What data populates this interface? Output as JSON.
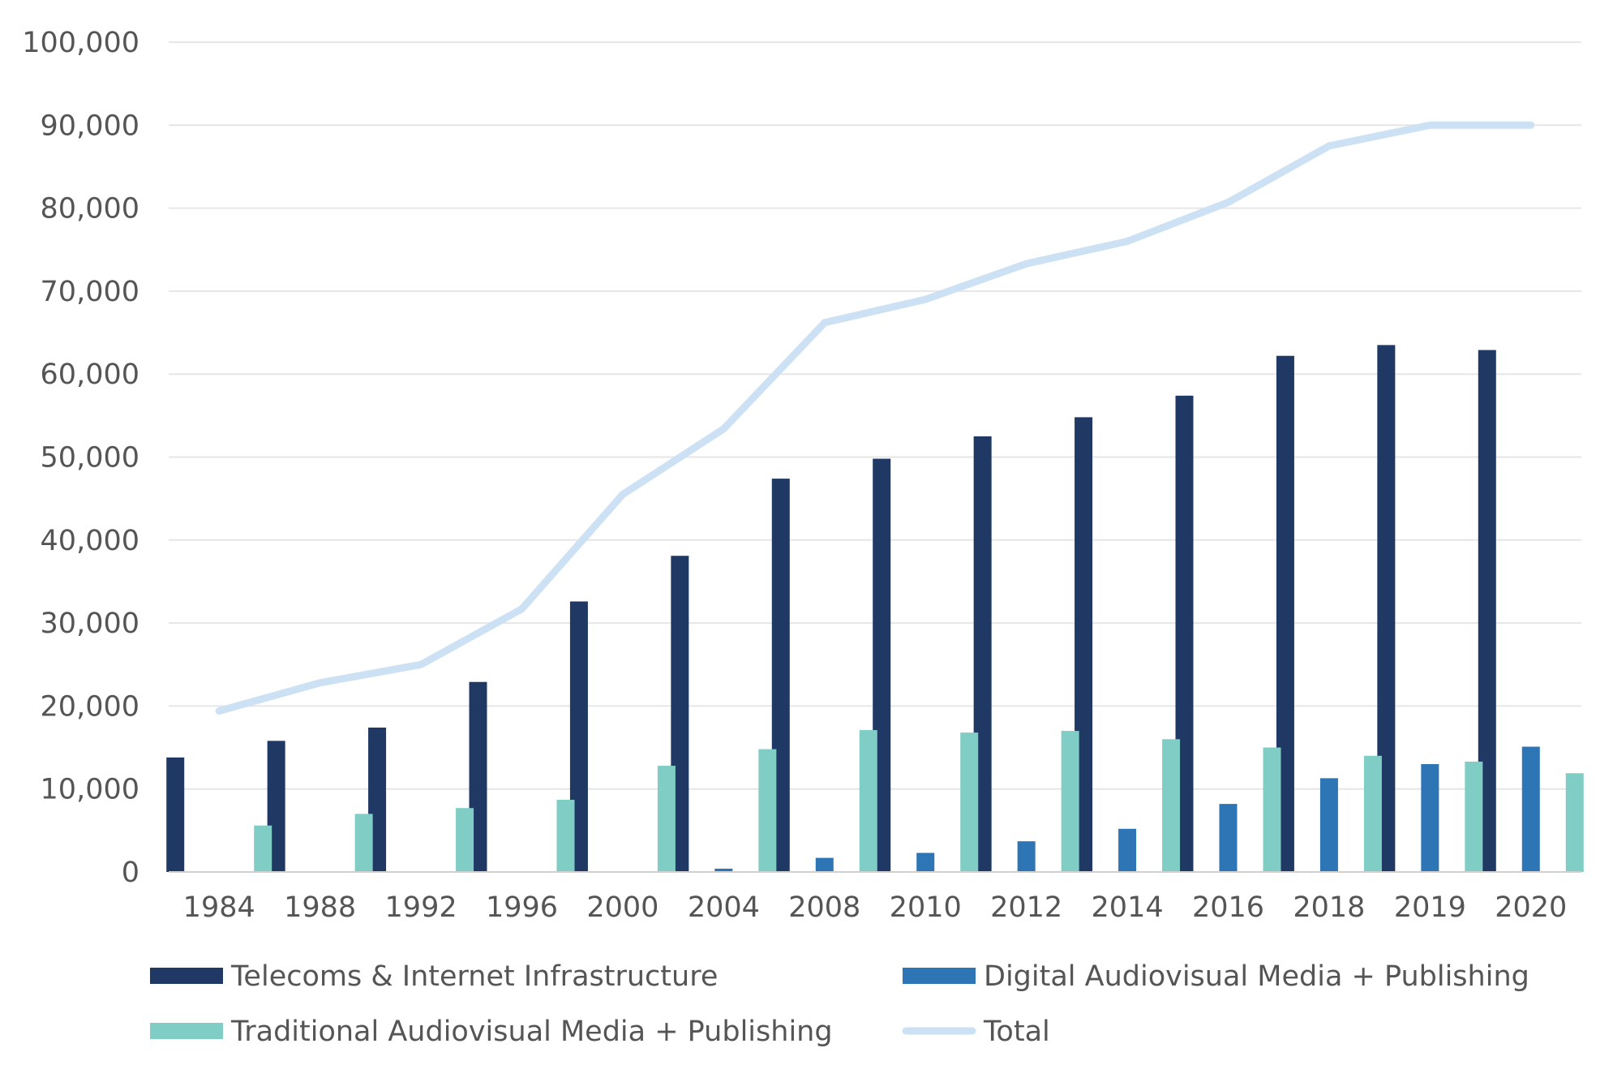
{
  "chart_data": {
    "type": "bar",
    "title": "",
    "xlabel": "",
    "ylabel": "",
    "ylim": [
      0,
      100000
    ],
    "y_ticks": [
      0,
      10000,
      20000,
      30000,
      40000,
      50000,
      60000,
      70000,
      80000,
      90000,
      100000
    ],
    "y_tick_labels": [
      "0",
      "10,000",
      "20,000",
      "30,000",
      "40,000",
      "50,000",
      "60,000",
      "70,000",
      "80,000",
      "90,000",
      "100,000"
    ],
    "grid": "horizontal",
    "legend_position": "bottom",
    "categories": [
      "1984",
      "1988",
      "1992",
      "1996",
      "2000",
      "2004",
      "2008",
      "2010",
      "2012",
      "2014",
      "2016",
      "2018",
      "2019",
      "2020"
    ],
    "series": [
      {
        "name": "Telecoms & Internet Infrastructure",
        "kind": "bar",
        "color": "#1f3864",
        "values": [
          13800,
          15800,
          17400,
          22900,
          32600,
          38100,
          47400,
          49800,
          52500,
          54800,
          57400,
          62200,
          63500,
          62900
        ]
      },
      {
        "name": "Digital Audiovisual Media + Publishing",
        "kind": "bar",
        "color": "#2e75b6",
        "values": [
          0,
          0,
          0,
          0,
          0,
          400,
          1700,
          2300,
          3700,
          5200,
          8200,
          11300,
          13000,
          15100
        ]
      },
      {
        "name": "Traditional Audiovisual Media + Publishing",
        "kind": "bar",
        "color": "#7fcdc4",
        "values": [
          5600,
          7000,
          7700,
          8700,
          12800,
          14800,
          17100,
          16800,
          17000,
          16000,
          15000,
          14000,
          13300,
          11900
        ]
      },
      {
        "name": "Total",
        "kind": "line",
        "color": "#cde1f5",
        "values": [
          19400,
          22800,
          25000,
          31700,
          45500,
          53400,
          66200,
          69000,
          73300,
          76000,
          80700,
          87500,
          90000,
          90000
        ]
      }
    ],
    "colors": {
      "grid": "#e6e6e6",
      "axis": "#d0d0d0",
      "text": "#555555"
    }
  }
}
